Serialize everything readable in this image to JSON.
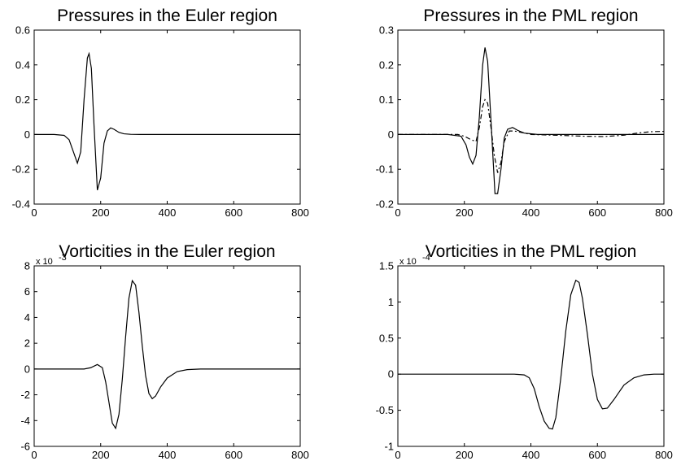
{
  "chart_data": [
    {
      "type": "line",
      "title": "Pressures in the Euler region",
      "xlim": [
        0,
        800
      ],
      "ylim": [
        -0.4,
        0.6
      ],
      "xticks": [
        0,
        200,
        400,
        600,
        800
      ],
      "xtick_labels": [
        "0",
        "200",
        "400",
        "600",
        "800"
      ],
      "yticks": [
        -0.4,
        -0.2,
        0,
        0.2,
        0.4,
        0.6
      ],
      "ytick_labels": [
        "-0.4",
        "-0.2",
        "0",
        "0.2",
        "0.4",
        "0.6"
      ],
      "exponent_label": "",
      "series": [
        {
          "style": "solid",
          "x": [
            0,
            60,
            90,
            105,
            118,
            130,
            140,
            150,
            160,
            165,
            172,
            180,
            190,
            200,
            210,
            220,
            230,
            240,
            255,
            270,
            290,
            320,
            800
          ],
          "y": [
            0,
            0,
            -0.005,
            -0.03,
            -0.1,
            -0.165,
            -0.1,
            0.2,
            0.44,
            0.465,
            0.38,
            0.05,
            -0.32,
            -0.25,
            -0.05,
            0.02,
            0.038,
            0.03,
            0.012,
            0.004,
            0.001,
            0,
            0
          ]
        }
      ]
    },
    {
      "type": "line",
      "title": "Pressures in the PML region",
      "xlim": [
        0,
        800
      ],
      "ylim": [
        -0.2,
        0.3
      ],
      "xticks": [
        0,
        200,
        400,
        600,
        800
      ],
      "xtick_labels": [
        "0",
        "200",
        "400",
        "600",
        "800"
      ],
      "yticks": [
        -0.2,
        -0.1,
        0,
        0.1,
        0.2,
        0.3
      ],
      "ytick_labels": [
        "-0.2",
        "-0.1",
        "0",
        "0.1",
        "0.2",
        "0.3"
      ],
      "exponent_label": "",
      "series": [
        {
          "style": "solid",
          "x": [
            0,
            150,
            190,
            205,
            215,
            225,
            235,
            245,
            255,
            262,
            270,
            280,
            292,
            300,
            310,
            320,
            330,
            345,
            360,
            380,
            420,
            800
          ],
          "y": [
            0,
            0,
            -0.005,
            -0.03,
            -0.065,
            -0.085,
            -0.06,
            0.05,
            0.2,
            0.25,
            0.21,
            0.04,
            -0.17,
            -0.17,
            -0.1,
            -0.01,
            0.015,
            0.02,
            0.012,
            0.004,
            0,
            0
          ]
        },
        {
          "style": "dashdot",
          "x": [
            0,
            180,
            200,
            220,
            235,
            245,
            255,
            262,
            270,
            280,
            290,
            300,
            310,
            320,
            335,
            350,
            400,
            500,
            560,
            620,
            680,
            720,
            760,
            800
          ],
          "y": [
            0,
            0,
            -0.005,
            -0.015,
            -0.02,
            0.02,
            0.08,
            0.1,
            0.09,
            0.02,
            -0.06,
            -0.11,
            -0.08,
            -0.02,
            0.01,
            0.01,
            0,
            -0.003,
            -0.005,
            -0.006,
            -0.002,
            0.004,
            0.008,
            0.009
          ]
        }
      ]
    },
    {
      "type": "line",
      "title": "Vorticities in the Euler region",
      "xlim": [
        0,
        800
      ],
      "ylim": [
        -6,
        8
      ],
      "xticks": [
        0,
        200,
        400,
        600,
        800
      ],
      "xtick_labels": [
        "0",
        "200",
        "400",
        "600",
        "800"
      ],
      "yticks": [
        -6,
        -4,
        -2,
        0,
        2,
        4,
        6,
        8
      ],
      "ytick_labels": [
        "-6",
        "-4",
        "-2",
        "0",
        "2",
        "4",
        "6",
        "8"
      ],
      "exponent_label": "x 10",
      "exponent_power": "-3",
      "series": [
        {
          "style": "solid",
          "x": [
            0,
            150,
            170,
            190,
            205,
            215,
            225,
            235,
            245,
            255,
            265,
            275,
            285,
            295,
            305,
            315,
            325,
            335,
            345,
            355,
            365,
            380,
            400,
            430,
            460,
            500,
            800
          ],
          "y": [
            0,
            0,
            0.1,
            0.35,
            0.1,
            -1.0,
            -2.6,
            -4.2,
            -4.6,
            -3.5,
            -0.8,
            2.5,
            5.5,
            6.85,
            6.5,
            4.4,
            1.8,
            -0.5,
            -1.9,
            -2.3,
            -2.1,
            -1.4,
            -0.7,
            -0.2,
            -0.05,
            0,
            0
          ]
        }
      ]
    },
    {
      "type": "line",
      "title": "Vorticities in the PML region",
      "xlim": [
        0,
        800
      ],
      "ylim": [
        -1,
        1.5
      ],
      "xticks": [
        0,
        200,
        400,
        600,
        800
      ],
      "xtick_labels": [
        "0",
        "200",
        "400",
        "600",
        "800"
      ],
      "yticks": [
        -1,
        -0.5,
        0,
        0.5,
        1,
        1.5
      ],
      "ytick_labels": [
        "-1",
        "-0.5",
        "0",
        "0.5",
        "1",
        "1.5"
      ],
      "exponent_label": "x 10",
      "exponent_power": "-4",
      "series": [
        {
          "style": "solid",
          "x": [
            0,
            350,
            380,
            395,
            410,
            425,
            440,
            455,
            465,
            475,
            490,
            505,
            520,
            535,
            545,
            555,
            570,
            585,
            600,
            615,
            630,
            650,
            680,
            710,
            740,
            770,
            800
          ],
          "y": [
            0,
            0,
            -0.01,
            -0.05,
            -0.2,
            -0.45,
            -0.65,
            -0.75,
            -0.76,
            -0.6,
            -0.05,
            0.6,
            1.1,
            1.3,
            1.27,
            1.05,
            0.55,
            0.0,
            -0.35,
            -0.48,
            -0.47,
            -0.35,
            -0.15,
            -0.05,
            -0.01,
            0,
            0
          ]
        }
      ]
    }
  ]
}
